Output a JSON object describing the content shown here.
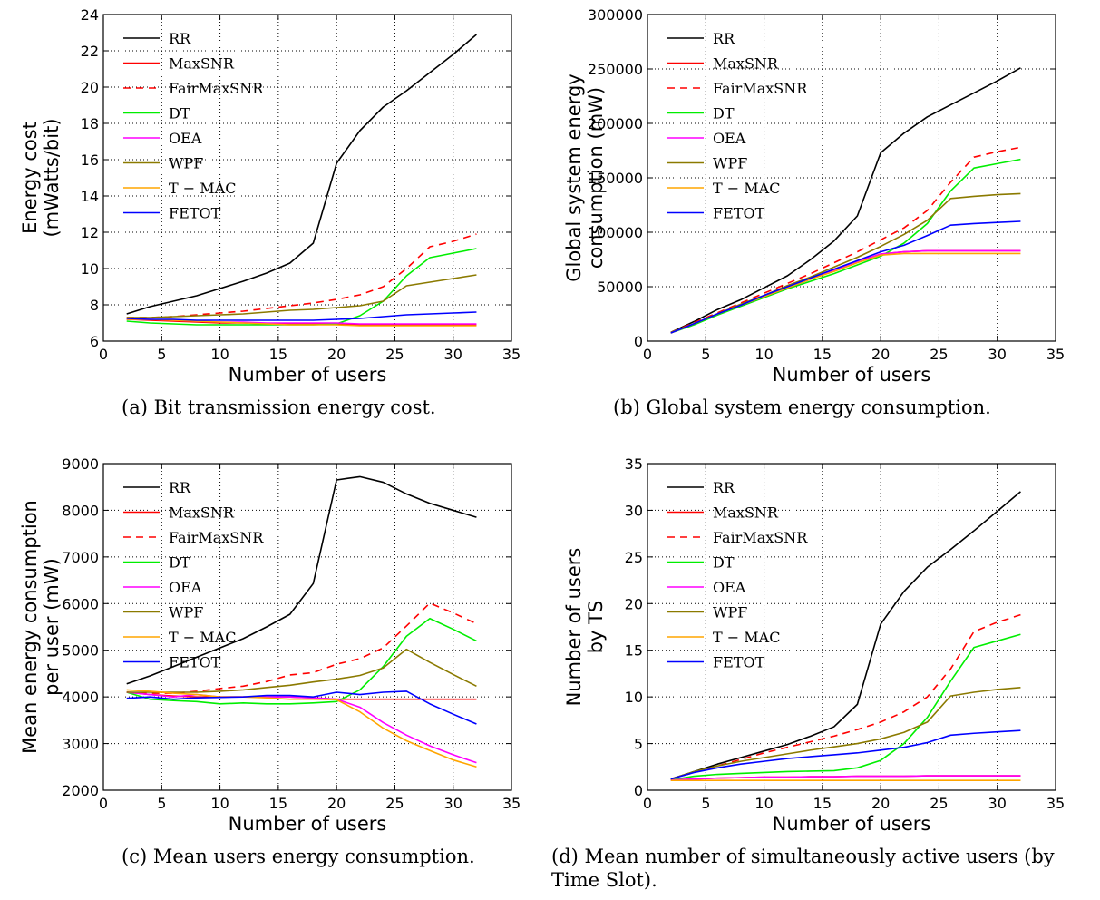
{
  "chart_data": [
    {
      "type": "line",
      "xlabel": "Number of users",
      "ylabel_lines": [
        "Energy cost",
        "(mWatts/bit)"
      ],
      "xlim": [
        0,
        35
      ],
      "ylim": [
        6,
        24
      ],
      "xticks": [
        0,
        5,
        10,
        15,
        20,
        25,
        30,
        35
      ],
      "yticks": [
        6,
        8,
        10,
        12,
        14,
        16,
        18,
        20,
        22,
        24
      ],
      "grid": true,
      "legend": "top-left",
      "caption": "(a)  Bit transmission energy cost.",
      "x": [
        2,
        4,
        6,
        8,
        10,
        12,
        14,
        16,
        18,
        20,
        22,
        24,
        26,
        28,
        30,
        32
      ],
      "series": [
        {
          "name": "RR",
          "color": "#000000",
          "dash": "",
          "values": [
            7.5,
            7.9,
            8.2,
            8.5,
            8.9,
            9.3,
            9.75,
            10.3,
            11.4,
            15.8,
            17.6,
            18.9,
            19.8,
            20.8,
            21.8,
            22.9
          ]
        },
        {
          "name": "MaxSNR",
          "color": "#ff0000",
          "dash": "",
          "values": [
            7.2,
            7.15,
            7.1,
            7.05,
            7.0,
            7.0,
            6.95,
            6.95,
            6.95,
            6.95,
            6.9,
            6.9,
            6.9,
            6.9,
            6.9,
            6.9
          ]
        },
        {
          "name": "FairMaxSNR",
          "color": "#ff0000",
          "dash": "8,6",
          "values": [
            7.3,
            7.3,
            7.35,
            7.45,
            7.55,
            7.65,
            7.8,
            7.95,
            8.1,
            8.3,
            8.55,
            9.0,
            10.0,
            11.2,
            11.5,
            11.9
          ]
        },
        {
          "name": "DT",
          "color": "#00ee00",
          "dash": "",
          "values": [
            7.1,
            7.0,
            6.95,
            6.9,
            6.9,
            6.9,
            6.9,
            6.9,
            6.9,
            6.95,
            7.4,
            8.2,
            9.6,
            10.6,
            10.85,
            11.1
          ]
        },
        {
          "name": "OEA",
          "color": "#ff00ff",
          "dash": "",
          "values": [
            7.2,
            7.2,
            7.15,
            7.1,
            7.05,
            7.05,
            7.0,
            7.0,
            7.0,
            7.0,
            6.95,
            6.95,
            6.95,
            6.95,
            6.95,
            6.95
          ]
        },
        {
          "name": "WPF",
          "color": "#8b7a00",
          "dash": "",
          "values": [
            7.3,
            7.3,
            7.35,
            7.4,
            7.45,
            7.5,
            7.6,
            7.7,
            7.75,
            7.85,
            7.95,
            8.2,
            9.05,
            9.25,
            9.45,
            9.65
          ]
        },
        {
          "name": "T − MAC",
          "color": "#ffa500",
          "dash": "",
          "values": [
            7.2,
            7.2,
            7.15,
            7.1,
            7.05,
            7.0,
            6.95,
            6.9,
            6.9,
            6.9,
            6.85,
            6.85,
            6.85,
            6.85,
            6.85,
            6.85
          ]
        },
        {
          "name": "FETOT",
          "color": "#0000ff",
          "dash": "",
          "values": [
            7.25,
            7.2,
            7.2,
            7.15,
            7.15,
            7.15,
            7.15,
            7.15,
            7.15,
            7.2,
            7.25,
            7.35,
            7.45,
            7.5,
            7.55,
            7.6
          ]
        }
      ]
    },
    {
      "type": "line",
      "xlabel": "Number of users",
      "ylabel_lines": [
        "Global system energy",
        "consumption (mW)"
      ],
      "xlim": [
        0,
        35
      ],
      "ylim": [
        0,
        300000
      ],
      "xticks": [
        0,
        5,
        10,
        15,
        20,
        25,
        30,
        35
      ],
      "yticks": [
        0,
        50000,
        100000,
        150000,
        200000,
        250000,
        300000
      ],
      "grid": true,
      "legend": "top-left",
      "caption": "(b)  Global system energy consumption.",
      "x": [
        2,
        4,
        6,
        8,
        10,
        12,
        14,
        16,
        18,
        20,
        22,
        24,
        26,
        28,
        30,
        32
      ],
      "series": [
        {
          "name": "RR",
          "color": "#000000",
          "dash": "",
          "values": [
            8000,
            18000,
            29000,
            38000,
            49000,
            60000,
            75000,
            92000,
            115000,
            173000,
            191000,
            206000,
            217000,
            228000,
            239000,
            251000
          ]
        },
        {
          "name": "MaxSNR",
          "color": "#ff0000",
          "dash": "",
          "values": [
            7500,
            16000,
            25000,
            33000,
            41000,
            49000,
            57000,
            65000,
            73000,
            80000,
            82000,
            83000,
            83000,
            83000,
            83000,
            83000
          ]
        },
        {
          "name": "FairMaxSNR",
          "color": "#ff0000",
          "dash": "8,6",
          "values": [
            8000,
            17000,
            26000,
            35000,
            44000,
            53000,
            62000,
            72000,
            82000,
            93000,
            104000,
            120000,
            146000,
            169000,
            174000,
            178000
          ]
        },
        {
          "name": "DT",
          "color": "#00ee00",
          "dash": "",
          "values": [
            7500,
            15000,
            24000,
            32000,
            40000,
            48000,
            55000,
            62000,
            70000,
            78000,
            90000,
            108000,
            138000,
            159000,
            163000,
            167000
          ]
        },
        {
          "name": "OEA",
          "color": "#ff00ff",
          "dash": "",
          "values": [
            7500,
            16000,
            25000,
            33000,
            41000,
            49000,
            57000,
            65000,
            73000,
            80000,
            82000,
            83000,
            83000,
            83000,
            83000,
            83000
          ]
        },
        {
          "name": "WPF",
          "color": "#8b7a00",
          "dash": "",
          "values": [
            8000,
            16000,
            25000,
            34000,
            42000,
            51000,
            59000,
            68000,
            77000,
            87000,
            98000,
            111000,
            131000,
            133000,
            134500,
            135500
          ]
        },
        {
          "name": "T − MAC",
          "color": "#ffa500",
          "dash": "",
          "values": [
            7500,
            16000,
            25000,
            33000,
            41000,
            49000,
            57000,
            64000,
            72000,
            79000,
            80500,
            80500,
            80500,
            80500,
            80500,
            80500
          ]
        },
        {
          "name": "FETOT",
          "color": "#0000ff",
          "dash": "",
          "values": [
            7500,
            16000,
            25000,
            33000,
            42000,
            50000,
            58000,
            66000,
            74000,
            82000,
            88000,
            97000,
            106500,
            108000,
            109000,
            110000
          ]
        }
      ]
    },
    {
      "type": "line",
      "xlabel": "Number of users",
      "ylabel_lines": [
        "Mean energy consumption",
        "per user (mW)"
      ],
      "xlim": [
        0,
        35
      ],
      "ylim": [
        2000,
        9000
      ],
      "xticks": [
        0,
        5,
        10,
        15,
        20,
        25,
        30,
        35
      ],
      "yticks": [
        2000,
        3000,
        4000,
        5000,
        6000,
        7000,
        8000,
        9000
      ],
      "grid": true,
      "legend": "top-left",
      "caption": "(c)  Mean users energy consumption.",
      "x": [
        2,
        4,
        6,
        8,
        10,
        12,
        14,
        16,
        18,
        20,
        22,
        24,
        26,
        28,
        30,
        32
      ],
      "series": [
        {
          "name": "RR",
          "color": "#000000",
          "dash": "",
          "values": [
            4280,
            4450,
            4650,
            4850,
            5050,
            5250,
            5500,
            5770,
            6430,
            8650,
            8720,
            8600,
            8350,
            8150,
            8000,
            7850
          ]
        },
        {
          "name": "MaxSNR",
          "color": "#ff0000",
          "dash": "",
          "values": [
            4100,
            4050,
            4020,
            4000,
            4000,
            4000,
            4000,
            4000,
            3980,
            3950,
            3950,
            3950,
            3950,
            3950,
            3950,
            3950
          ]
        },
        {
          "name": "FairMaxSNR",
          "color": "#ff0000",
          "dash": "8,6",
          "values": [
            4100,
            4080,
            4080,
            4120,
            4180,
            4230,
            4330,
            4470,
            4520,
            4700,
            4820,
            5050,
            5520,
            6010,
            5800,
            5570
          ]
        },
        {
          "name": "DT",
          "color": "#00ee00",
          "dash": "",
          "values": [
            4100,
            3950,
            3920,
            3900,
            3850,
            3870,
            3850,
            3850,
            3870,
            3900,
            4150,
            4650,
            5300,
            5680,
            5450,
            5200
          ]
        },
        {
          "name": "OEA",
          "color": "#ff00ff",
          "dash": "",
          "values": [
            4100,
            4050,
            4000,
            4050,
            4000,
            4000,
            4000,
            4000,
            3980,
            3950,
            3780,
            3450,
            3180,
            2950,
            2760,
            2590
          ]
        },
        {
          "name": "WPF",
          "color": "#8b7a00",
          "dash": "",
          "values": [
            4100,
            4100,
            4100,
            4100,
            4120,
            4150,
            4200,
            4250,
            4320,
            4380,
            4460,
            4620,
            5020,
            4740,
            4480,
            4230
          ]
        },
        {
          "name": "T − MAC",
          "color": "#ffa500",
          "dash": "",
          "values": [
            4150,
            4120,
            4080,
            4050,
            4000,
            4000,
            3980,
            3950,
            3950,
            3940,
            3680,
            3330,
            3060,
            2850,
            2650,
            2500
          ]
        },
        {
          "name": "FETOT",
          "color": "#0000ff",
          "dash": "",
          "values": [
            3970,
            4000,
            3950,
            3980,
            3990,
            4000,
            4030,
            4030,
            4000,
            4100,
            4050,
            4100,
            4120,
            3850,
            3630,
            3420
          ]
        }
      ]
    },
    {
      "type": "line",
      "xlabel": "Number of users",
      "ylabel_lines": [
        "Number of users",
        "by TS"
      ],
      "xlim": [
        0,
        35
      ],
      "ylim": [
        0,
        35
      ],
      "xticks": [
        0,
        5,
        10,
        15,
        20,
        25,
        30,
        35
      ],
      "yticks": [
        0,
        5,
        10,
        15,
        20,
        25,
        30,
        35
      ],
      "grid": true,
      "legend": "top-left",
      "caption": "(d)  Mean number of simultaneously active users (by Time Slot).",
      "x": [
        2,
        4,
        6,
        8,
        10,
        12,
        14,
        16,
        18,
        20,
        22,
        24,
        26,
        28,
        30,
        32
      ],
      "series": [
        {
          "name": "RR",
          "color": "#000000",
          "dash": "",
          "values": [
            1.2,
            2.0,
            2.8,
            3.5,
            4.2,
            4.9,
            5.8,
            6.8,
            9.2,
            17.8,
            21.3,
            23.9,
            25.8,
            27.8,
            29.9,
            32.0
          ]
        },
        {
          "name": "MaxSNR",
          "color": "#ff0000",
          "dash": "",
          "values": [
            1.1,
            1.2,
            1.3,
            1.35,
            1.4,
            1.4,
            1.45,
            1.45,
            1.5,
            1.5,
            1.5,
            1.55,
            1.55,
            1.55,
            1.55,
            1.55
          ]
        },
        {
          "name": "FairMaxSNR",
          "color": "#ff0000",
          "dash": "8,6",
          "values": [
            1.2,
            1.9,
            2.6,
            3.3,
            4.0,
            4.6,
            5.2,
            5.8,
            6.5,
            7.3,
            8.4,
            10.0,
            13.0,
            17.0,
            18.0,
            18.8
          ]
        },
        {
          "name": "DT",
          "color": "#00ee00",
          "dash": "",
          "values": [
            1.1,
            1.5,
            1.7,
            1.8,
            1.9,
            2.0,
            2.05,
            2.1,
            2.4,
            3.2,
            5.0,
            7.8,
            11.7,
            15.3,
            16.0,
            16.7
          ]
        },
        {
          "name": "OEA",
          "color": "#ff00ff",
          "dash": "",
          "values": [
            1.1,
            1.2,
            1.3,
            1.35,
            1.4,
            1.4,
            1.45,
            1.45,
            1.5,
            1.5,
            1.5,
            1.55,
            1.55,
            1.55,
            1.55,
            1.55
          ]
        },
        {
          "name": "WPF",
          "color": "#8b7a00",
          "dash": "",
          "values": [
            1.2,
            2.0,
            2.6,
            3.1,
            3.5,
            3.9,
            4.3,
            4.65,
            5.0,
            5.5,
            6.2,
            7.3,
            10.1,
            10.5,
            10.8,
            11.0
          ]
        },
        {
          "name": "T − MAC",
          "color": "#ffa500",
          "dash": "",
          "values": [
            1.05,
            1.05,
            1.05,
            1.05,
            1.05,
            1.05,
            1.05,
            1.05,
            1.05,
            1.05,
            1.05,
            1.05,
            1.05,
            1.05,
            1.05,
            1.05
          ]
        },
        {
          "name": "FETOT",
          "color": "#0000ff",
          "dash": "",
          "values": [
            1.2,
            1.9,
            2.4,
            2.8,
            3.1,
            3.4,
            3.6,
            3.8,
            4.0,
            4.3,
            4.6,
            5.1,
            5.9,
            6.1,
            6.25,
            6.4
          ]
        }
      ]
    }
  ]
}
